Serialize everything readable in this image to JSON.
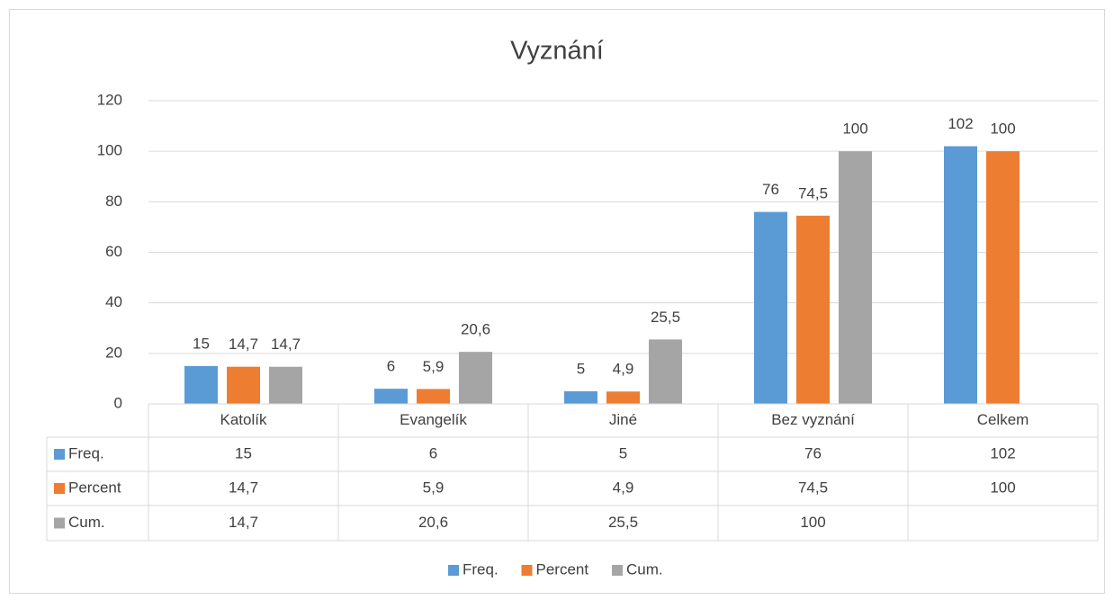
{
  "chart_data": {
    "type": "bar",
    "title": "Vyznání",
    "categories": [
      "Katolík",
      "Evangelík",
      "Jiné",
      "Bez vyznání",
      "Celkem"
    ],
    "series": [
      {
        "name": "Freq.",
        "color": "#5b9bd5",
        "values": [
          15,
          6,
          5,
          76,
          102
        ]
      },
      {
        "name": "Percent",
        "color": "#ed7d31",
        "values": [
          14.7,
          5.9,
          4.9,
          74.5,
          100
        ],
        "value_labels": [
          "14,7",
          "5,9",
          "4,9",
          "74,5",
          "100"
        ]
      },
      {
        "name": "Cum.",
        "color": "#a5a5a5",
        "values": [
          14.7,
          20.6,
          25.5,
          100,
          null
        ],
        "value_labels": [
          "14,7",
          "20,6",
          "25,5",
          "100",
          null
        ]
      }
    ],
    "ylim": [
      0,
      120
    ],
    "yticks": [
      0,
      20,
      40,
      60,
      80,
      100,
      120
    ],
    "grid": true,
    "legend": "bottom",
    "data_table": true
  }
}
